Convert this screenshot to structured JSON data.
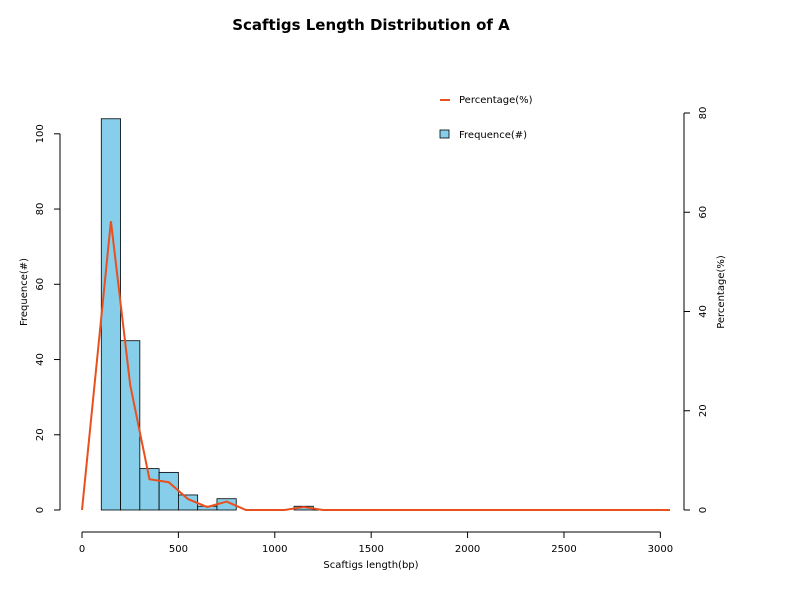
{
  "chart_data": {
    "type": "bar",
    "title": "Scaftigs Length Distribution of A",
    "xlabel": "Scaftigs length(bp)",
    "ylabel": "Frequence(#)",
    "ylabel_right": "Percentage(%)",
    "xlim": [
      0,
      3050
    ],
    "ylim": [
      0,
      105
    ],
    "ylim_right": [
      0,
      80
    ],
    "x_ticks": [
      0,
      500,
      1000,
      1500,
      2000,
      2500,
      3000
    ],
    "y_ticks": [
      0,
      20,
      40,
      60,
      80,
      100
    ],
    "y_ticks_right": [
      0,
      20,
      40,
      60,
      80
    ],
    "grid": false,
    "legend_position": "top-right",
    "histogram": {
      "name": "Frequence(#)",
      "color": "#87ceeb",
      "bins": [
        {
          "x0": 100,
          "x1": 200,
          "value": 104
        },
        {
          "x0": 200,
          "x1": 300,
          "value": 45
        },
        {
          "x0": 300,
          "x1": 400,
          "value": 11
        },
        {
          "x0": 400,
          "x1": 500,
          "value": 10
        },
        {
          "x0": 500,
          "x1": 600,
          "value": 4
        },
        {
          "x0": 600,
          "x1": 700,
          "value": 1
        },
        {
          "x0": 700,
          "x1": 800,
          "value": 3
        },
        {
          "x0": 800,
          "x1": 900,
          "value": 0
        },
        {
          "x0": 900,
          "x1": 1000,
          "value": 0
        },
        {
          "x0": 1000,
          "x1": 1100,
          "value": 0
        },
        {
          "x0": 1100,
          "x1": 1200,
          "value": 1
        },
        {
          "x0": 1200,
          "x1": 1300,
          "value": 0
        }
      ]
    },
    "line": {
      "name": "Percentage(%)",
      "color": "#e8501e",
      "x": [
        0,
        150,
        250,
        350,
        450,
        550,
        650,
        750,
        850,
        950,
        1050,
        1150,
        1250,
        3050
      ],
      "y": [
        0,
        58.2,
        25.2,
        6.2,
        5.6,
        2.2,
        0.6,
        1.7,
        0,
        0,
        0,
        0.6,
        0,
        0
      ]
    },
    "legend": [
      {
        "label": "Percentage(%)",
        "kind": "line"
      },
      {
        "label": "Frequence(#)",
        "kind": "box"
      }
    ]
  }
}
